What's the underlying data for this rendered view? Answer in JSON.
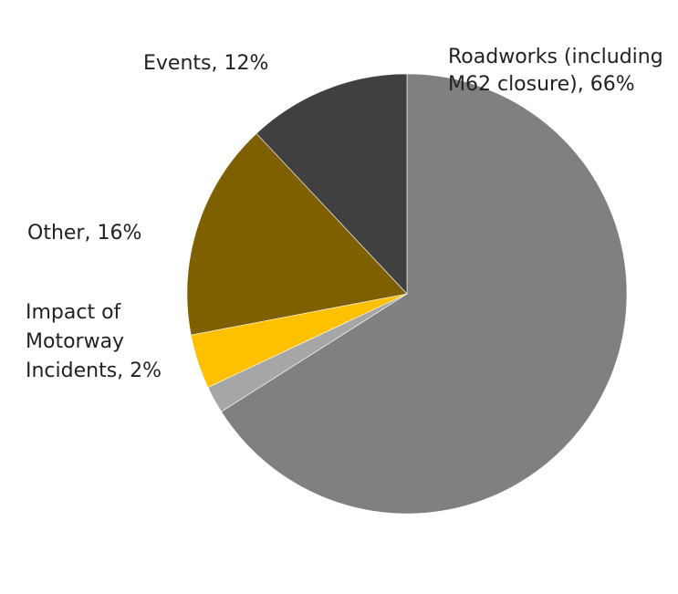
{
  "chart_data": {
    "type": "pie",
    "title": "",
    "start_angle_deg": 0,
    "direction": "clockwise",
    "slices": [
      {
        "name": "Roadworks (including M62 closure)",
        "value": 66,
        "color": "#808080",
        "label_lines": [
          "Roadworks (including",
          "M62 closure), 66%"
        ]
      },
      {
        "name": "Impact of Motorway Incidents",
        "value": 2,
        "color": "#a6a6a6",
        "label_lines": [
          "Impact of",
          "Motorway",
          "Incidents, 2%"
        ]
      },
      {
        "name": "(unlabelled)",
        "value": 4,
        "color": "#ffc000",
        "label_lines": []
      },
      {
        "name": "Other",
        "value": 16,
        "color": "#7f6000",
        "label_lines": [
          "Other, 16%"
        ]
      },
      {
        "name": "Events",
        "value": 12,
        "color": "#404040",
        "label_lines": [
          "Events, 12%"
        ]
      }
    ]
  }
}
